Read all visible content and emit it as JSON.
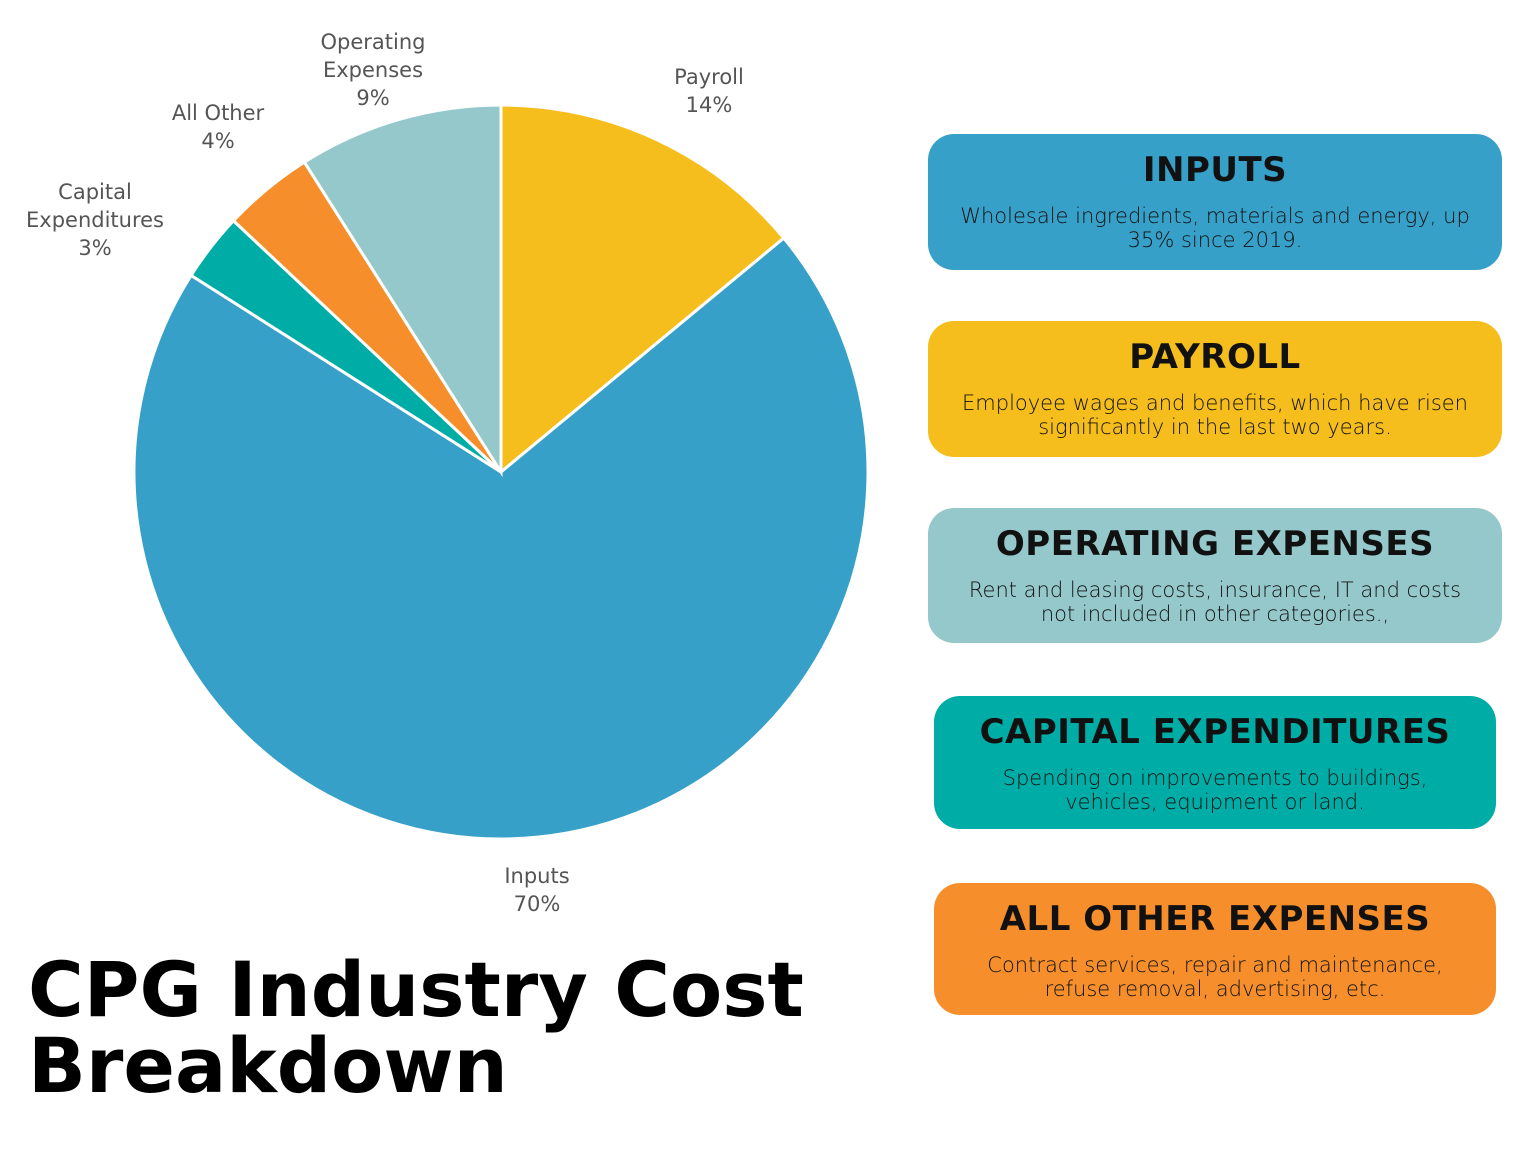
{
  "chart_data": {
    "type": "pie",
    "title": "CPG Industry Cost Breakdown",
    "start_angle": "12 o'clock",
    "direction": "clockwise",
    "slices": [
      {
        "label": "Payroll",
        "value": 14,
        "display": "14%",
        "color": "#f5be1c"
      },
      {
        "label": "Inputs",
        "value": 70,
        "display": "70%",
        "color": "#37a0c8"
      },
      {
        "label": "Capital Expenditures",
        "value": 3,
        "display": "3%",
        "color": "#00ada6"
      },
      {
        "label": "All Other",
        "value": 4,
        "display": "4%",
        "color": "#f68f2b"
      },
      {
        "label": "Operating Expenses",
        "value": 9,
        "display": "9%",
        "color": "#95c8cb"
      }
    ]
  },
  "cards": [
    {
      "title": "INPUTS",
      "description": "Wholesale ingredients, materials and energy, up 35% since 2019.",
      "color": "#37a0c8"
    },
    {
      "title": "PAYROLL",
      "description": "Employee wages and benefits, which have risen significantly in the last two years.",
      "color": "#f5be1c"
    },
    {
      "title": "OPERATING EXPENSES",
      "description": "Rent and leasing costs, insurance, IT and costs not included in other categories.,",
      "color": "#95c8cb"
    },
    {
      "title": "CAPITAL EXPENDITURES",
      "description": "Spending on improvements to buildings, vehicles, equipment or land.",
      "color": "#00ada6"
    },
    {
      "title": "ALL OTHER EXPENSES",
      "description": "Contract services, repair and maintenance, refuse removal, advertising, etc.",
      "color": "#f68f2b"
    }
  ]
}
